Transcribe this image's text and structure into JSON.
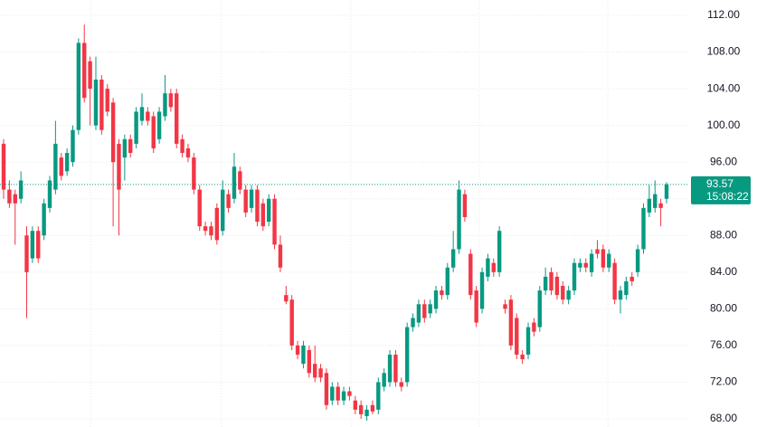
{
  "chart_data": {
    "type": "candlestick",
    "ylim": [
      67.11,
      113.68
    ],
    "yticks": [
      {
        "value": 68,
        "label": "68.00"
      },
      {
        "value": 72,
        "label": "72.00"
      },
      {
        "value": 76,
        "label": "76.00"
      },
      {
        "value": 80,
        "label": "80.00"
      },
      {
        "value": 84,
        "label": "84.00"
      },
      {
        "value": 88,
        "label": "88.00"
      },
      {
        "value": 92,
        "label": "92.00"
      },
      {
        "value": 96,
        "label": "96.00"
      },
      {
        "value": 100,
        "label": "100.00"
      },
      {
        "value": 104,
        "label": "104.00"
      },
      {
        "value": 108,
        "label": "108.00"
      },
      {
        "value": 112,
        "label": "112.00"
      }
    ],
    "grid": true,
    "up_color": "#089981",
    "down_color": "#f23645",
    "open": [
      98,
      93,
      92.5,
      92,
      88,
      85.5,
      88.5,
      88,
      91,
      93,
      96.5,
      95,
      96,
      99.5,
      109,
      107,
      100,
      105,
      104,
      102.5,
      98,
      96.5,
      98.5,
      98,
      100.5,
      101.5,
      101,
      98.5,
      101,
      103.5,
      103.5,
      98.5,
      97.5,
      96.5,
      93,
      89,
      89,
      91,
      88.5,
      92.5,
      92,
      95,
      93,
      91,
      93,
      91.5,
      89.5,
      92,
      87,
      81.5,
      81,
      76,
      74,
      75.5,
      74,
      73.5,
      73,
      70,
      71.5,
      70,
      71,
      70,
      69.5,
      68.3,
      69.5,
      69,
      71.5,
      72,
      75,
      72,
      72,
      78,
      78.5,
      80.5,
      79.5,
      80,
      82,
      81.5,
      84.5,
      86.5,
      92.5,
      86,
      82,
      80,
      83.5,
      85,
      84,
      80.5,
      81,
      79,
      75,
      75,
      78.5,
      78,
      82,
      84,
      83.5,
      82.5,
      81,
      82,
      84.5,
      85,
      84,
      86.5,
      86.5,
      84.5,
      85,
      81,
      81.5,
      83.5,
      84,
      86.5,
      90.5,
      91,
      91.5,
      92
    ],
    "high": [
      98.5,
      94,
      93,
      95,
      89,
      89,
      89,
      92,
      94.5,
      100.5,
      97,
      97.5,
      100,
      109.5,
      111,
      107.5,
      107.5,
      105.5,
      104.5,
      103,
      98.5,
      99,
      99,
      102,
      103.5,
      102,
      101.5,
      102,
      105.5,
      104,
      104,
      99,
      98,
      97,
      93.5,
      89.5,
      89.5,
      91.5,
      94,
      93,
      97,
      95.5,
      93.5,
      93.5,
      93.5,
      92,
      92.5,
      92.5,
      88,
      82.5,
      81.5,
      76.5,
      76.5,
      76,
      76,
      74,
      73.5,
      72,
      72,
      71.5,
      71.5,
      70.5,
      70,
      69.5,
      70,
      72.5,
      73.5,
      75.5,
      75.5,
      72.5,
      78.5,
      79.5,
      81,
      81,
      81,
      82.5,
      82.5,
      85,
      88.5,
      94,
      93,
      86.5,
      82.5,
      84.5,
      86,
      85.5,
      89,
      81,
      81.5,
      79.5,
      75.5,
      78.5,
      79,
      82.5,
      84.5,
      84.5,
      84,
      83,
      82.5,
      85.5,
      85.5,
      85.5,
      86.5,
      87.5,
      87,
      86.5,
      85.5,
      82.5,
      83.5,
      84,
      87,
      91.5,
      93.5,
      94,
      92,
      93.8
    ],
    "low": [
      92,
      91,
      87,
      91.5,
      79,
      85,
      85,
      87.5,
      90.5,
      92.5,
      94,
      94.5,
      95.5,
      99,
      102.5,
      100,
      99.5,
      99,
      101,
      89,
      88,
      94,
      96.5,
      97.5,
      100,
      100,
      97,
      98,
      100.5,
      101.5,
      97.5,
      96.5,
      96,
      92.5,
      88.5,
      88,
      87.5,
      87,
      88,
      90.5,
      91.5,
      92.5,
      90,
      90.5,
      89,
      88.5,
      89,
      86.5,
      84,
      80.5,
      75.5,
      74.5,
      73.5,
      72.5,
      72,
      72,
      69,
      69.5,
      69.5,
      69.5,
      70,
      68.5,
      68,
      67.8,
      68.5,
      68.5,
      71,
      71.5,
      71.5,
      71,
      71.5,
      77.5,
      78,
      78.5,
      79,
      79.5,
      81,
      81,
      84,
      86,
      89.5,
      81,
      78,
      79.5,
      83,
      83.5,
      83.5,
      79.5,
      75.5,
      74.5,
      74,
      74.5,
      77,
      77.5,
      81.5,
      81.5,
      81,
      80.5,
      80.5,
      81.5,
      84,
      84,
      83.5,
      85.5,
      84,
      84,
      80.5,
      79.5,
      81,
      82.5,
      83.5,
      86,
      90,
      90.5,
      89,
      91.5
    ],
    "close": [
      93,
      91.5,
      91.5,
      94,
      84,
      88.5,
      85.5,
      91.5,
      94,
      98,
      94.5,
      97,
      99.5,
      109,
      103,
      104,
      105,
      99.5,
      101.5,
      96,
      93,
      98.5,
      97,
      101.5,
      102,
      100.5,
      97.5,
      101.5,
      103.5,
      102,
      98,
      97,
      96.5,
      93,
      89,
      88.5,
      88,
      87.5,
      93,
      91,
      95.5,
      93,
      90.5,
      93,
      89.5,
      89,
      92,
      87,
      84.5,
      80.8,
      76,
      75,
      76,
      73,
      72.5,
      72.5,
      69.5,
      71.5,
      70,
      71,
      70.5,
      69,
      68.5,
      69,
      68.8,
      72,
      73,
      75,
      72,
      71.5,
      78,
      79,
      80.5,
      79,
      80.5,
      82,
      81.5,
      84.5,
      86.5,
      93,
      90,
      81.5,
      78.5,
      84,
      85.5,
      84,
      88.5,
      80,
      76,
      75,
      74.5,
      78,
      77.5,
      82,
      83.5,
      82,
      81.5,
      81,
      82,
      85,
      85,
      84.5,
      86,
      86,
      84.5,
      86,
      81,
      82,
      83,
      83,
      86.5,
      91,
      92,
      92.5,
      91,
      93.57
    ],
    "last_price": {
      "value": 93.57,
      "label": "93.57"
    },
    "countdown": "15:08:22"
  }
}
